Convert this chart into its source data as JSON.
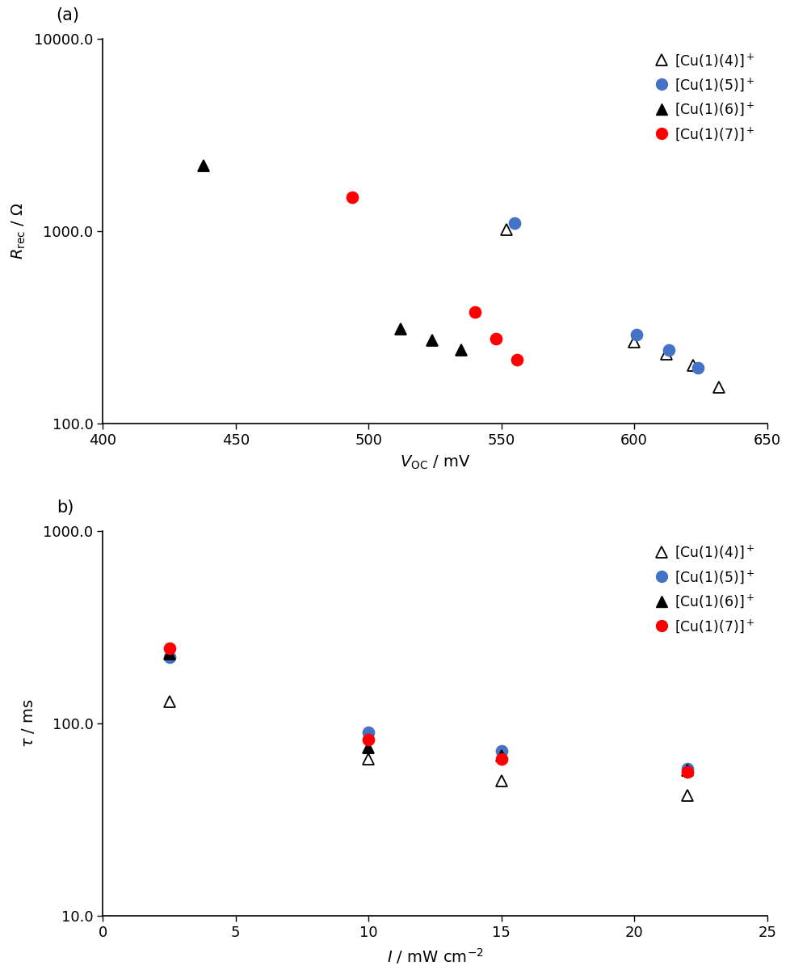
{
  "panel_a": {
    "title": "(a)",
    "xlabel": "$V_\\mathrm{OC}$ / mV",
    "ylabel": "$R_\\mathrm{rec}$ / Ω",
    "xlim": [
      400,
      650
    ],
    "ylim": [
      100.0,
      10000.0
    ],
    "yticks": [
      100.0,
      1000.0,
      10000.0
    ],
    "yticklabels": [
      "100.0",
      "1000.0",
      "10000.0"
    ],
    "xticks": [
      400,
      450,
      500,
      550,
      600,
      650
    ],
    "series": [
      {
        "label": "[Cu(1)(4)]$^+$",
        "marker": "^",
        "color": "#000000",
        "filled": false,
        "x": [
          552,
          600,
          612,
          622,
          632
        ],
        "y": [
          1020,
          265,
          230,
          200,
          155
        ]
      },
      {
        "label": "[Cu(1)(5)]$^+$",
        "marker": "o",
        "color": "#4472C4",
        "filled": true,
        "x": [
          555,
          601,
          613,
          624
        ],
        "y": [
          1100,
          290,
          240,
          195
        ]
      },
      {
        "label": "[Cu(1)(6)]$^+$",
        "marker": "^",
        "color": "#000000",
        "filled": true,
        "x": [
          438,
          512,
          524,
          535
        ],
        "y": [
          2200,
          310,
          270,
          240
        ]
      },
      {
        "label": "[Cu(1)(7)]$^+$",
        "marker": "o",
        "color": "#FF0000",
        "filled": true,
        "x": [
          494,
          540,
          548,
          556
        ],
        "y": [
          1500,
          380,
          275,
          215
        ]
      }
    ]
  },
  "panel_b": {
    "title": "b)",
    "xlabel": "$I$ / mW cm$^{-2}$",
    "ylabel": "$\\tau$ / ms",
    "xlim": [
      0,
      25
    ],
    "ylim": [
      10.0,
      1000.0
    ],
    "yticks": [
      10.0,
      100.0,
      1000.0
    ],
    "yticklabels": [
      "10.0",
      "100.0",
      "1000.0"
    ],
    "xticks": [
      0,
      5,
      10,
      15,
      20,
      25
    ],
    "series": [
      {
        "label": "[Cu(1)(4)]$^+$",
        "marker": "^",
        "color": "#000000",
        "filled": false,
        "x": [
          2.5,
          10,
          15,
          22
        ],
        "y": [
          130,
          65,
          50,
          42
        ]
      },
      {
        "label": "[Cu(1)(5)]$^+$",
        "marker": "o",
        "color": "#4472C4",
        "filled": true,
        "x": [
          2.5,
          10,
          15,
          22
        ],
        "y": [
          220,
          90,
          72,
          58
        ]
      },
      {
        "label": "[Cu(1)(6)]$^+$",
        "marker": "^",
        "color": "#000000",
        "filled": true,
        "x": [
          2.5,
          10,
          15,
          22
        ],
        "y": [
          230,
          75,
          68,
          57
        ]
      },
      {
        "label": "[Cu(1)(7)]$^+$",
        "marker": "o",
        "color": "#FF0000",
        "filled": true,
        "x": [
          2.5,
          10,
          15,
          22
        ],
        "y": [
          245,
          82,
          65,
          56
        ]
      }
    ]
  },
  "blue_color": "#4472C4",
  "red_color": "#FF0000",
  "black_color": "#000000",
  "background_color": "#FFFFFF",
  "markersize": 10,
  "tick_labelsize": 13,
  "axis_labelsize": 14
}
